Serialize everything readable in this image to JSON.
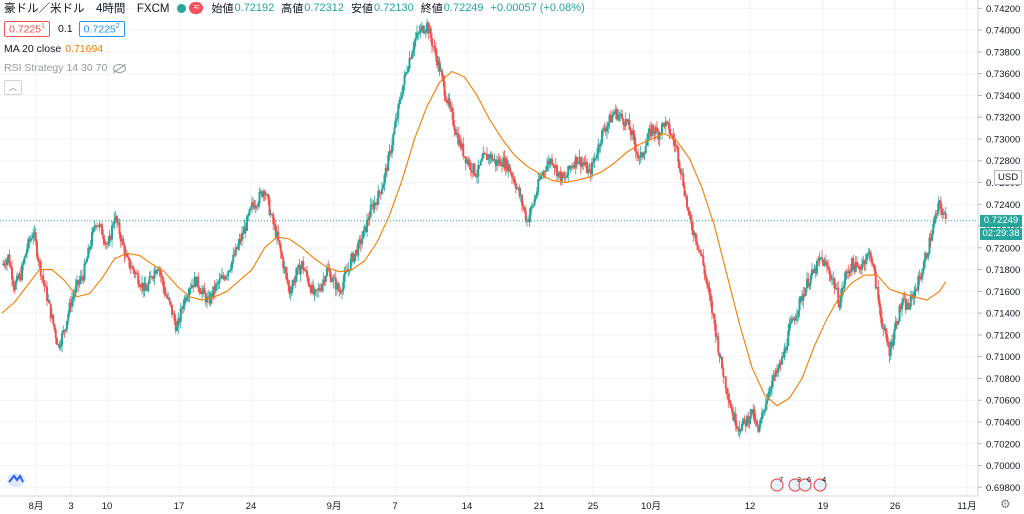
{
  "header": {
    "symbol": "豪ドル／米ドル　4時間　FXCM",
    "ohlc": [
      {
        "label": "始値",
        "value": "0.72192"
      },
      {
        "label": "高値",
        "value": "0.72312"
      },
      {
        "label": "安値",
        "value": "0.72130"
      },
      {
        "label": "終値",
        "value": "0.72249"
      }
    ],
    "change": "+0.00057 (+0.08%)",
    "tilde_icon": "≈",
    "sell_price": "0.7225",
    "sell_price_sup": "1",
    "spread": "0.1",
    "buy_price": "0.7225",
    "buy_price_sup": "2"
  },
  "indicators": {
    "ma_label": "MA 20 close",
    "ma_value": "0.71694",
    "rsi_label": "RSI Strategy 14 30 70",
    "rsi_icon": "eye-hidden-icon"
  },
  "colors": {
    "up": "#26a69a",
    "down": "#ef5350",
    "ma": "#f57c00",
    "grid": "#f0f3fa",
    "axis_text": "#131722"
  },
  "price_axis": {
    "currency": "USD",
    "current_price": "0.72249",
    "countdown": "02:29:38"
  },
  "chart_data": {
    "type": "candlestick",
    "title": "",
    "xlabel": "",
    "ylabel": "",
    "ylim": [
      0.6972,
      0.7424
    ],
    "yticks": [
      "0.74200",
      "0.74000",
      "0.73800",
      "0.73600",
      "0.73400",
      "0.73200",
      "0.73000",
      "0.72800",
      "0.72600",
      "0.72400",
      "0.72200",
      "0.72000",
      "0.71800",
      "0.71600",
      "0.71400",
      "0.71200",
      "0.71000",
      "0.70800",
      "0.70600",
      "0.70400",
      "0.70200",
      "0.70000",
      "0.69800"
    ],
    "xticks": [
      "8月",
      "3",
      "10",
      "17",
      "24",
      "9月",
      "7",
      "14",
      "21",
      "25",
      "10月",
      "12",
      "19",
      "26",
      "11月"
    ],
    "grid": true,
    "close_path": [
      [
        0,
        0.7184
      ],
      [
        5,
        0.7192
      ],
      [
        10,
        0.7165
      ],
      [
        15,
        0.7175
      ],
      [
        20,
        0.72
      ],
      [
        25,
        0.7215
      ],
      [
        30,
        0.7185
      ],
      [
        35,
        0.716
      ],
      [
        40,
        0.7135
      ],
      [
        45,
        0.711
      ],
      [
        50,
        0.7125
      ],
      [
        55,
        0.715
      ],
      [
        60,
        0.7165
      ],
      [
        65,
        0.7175
      ],
      [
        70,
        0.72
      ],
      [
        75,
        0.7225
      ],
      [
        80,
        0.7215
      ],
      [
        85,
        0.72
      ],
      [
        90,
        0.723
      ],
      [
        95,
        0.721
      ],
      [
        100,
        0.7188
      ],
      [
        105,
        0.718
      ],
      [
        110,
        0.717
      ],
      [
        115,
        0.716
      ],
      [
        120,
        0.7175
      ],
      [
        125,
        0.7185
      ],
      [
        130,
        0.716
      ],
      [
        135,
        0.7145
      ],
      [
        140,
        0.7125
      ],
      [
        145,
        0.715
      ],
      [
        150,
        0.7165
      ],
      [
        155,
        0.717
      ],
      [
        160,
        0.716
      ],
      [
        165,
        0.715
      ],
      [
        170,
        0.7162
      ],
      [
        175,
        0.717
      ],
      [
        180,
        0.7178
      ],
      [
        185,
        0.719
      ],
      [
        190,
        0.7205
      ],
      [
        195,
        0.722
      ],
      [
        200,
        0.7238
      ],
      [
        205,
        0.7245
      ],
      [
        210,
        0.7255
      ],
      [
        215,
        0.723
      ],
      [
        220,
        0.721
      ],
      [
        225,
        0.7185
      ],
      [
        230,
        0.716
      ],
      [
        235,
        0.7175
      ],
      [
        240,
        0.7185
      ],
      [
        245,
        0.717
      ],
      [
        250,
        0.7155
      ],
      [
        255,
        0.7165
      ],
      [
        260,
        0.718
      ],
      [
        265,
        0.717
      ],
      [
        270,
        0.716
      ],
      [
        275,
        0.7175
      ],
      [
        280,
        0.719
      ],
      [
        285,
        0.72
      ],
      [
        290,
        0.7215
      ],
      [
        295,
        0.7235
      ],
      [
        300,
        0.7245
      ],
      [
        305,
        0.726
      ],
      [
        310,
        0.7285
      ],
      [
        315,
        0.7315
      ],
      [
        320,
        0.7345
      ],
      [
        325,
        0.737
      ],
      [
        330,
        0.739
      ],
      [
        335,
        0.74
      ],
      [
        340,
        0.7405
      ],
      [
        345,
        0.7385
      ],
      [
        350,
        0.7365
      ],
      [
        355,
        0.734
      ],
      [
        360,
        0.732
      ],
      [
        365,
        0.73
      ],
      [
        370,
        0.7285
      ],
      [
        375,
        0.7275
      ],
      [
        380,
        0.7268
      ],
      [
        385,
        0.7282
      ],
      [
        390,
        0.7285
      ],
      [
        395,
        0.7278
      ],
      [
        400,
        0.728
      ],
      [
        405,
        0.7275
      ],
      [
        410,
        0.7262
      ],
      [
        415,
        0.7245
      ],
      [
        420,
        0.7225
      ],
      [
        425,
        0.724
      ],
      [
        430,
        0.7262
      ],
      [
        435,
        0.7275
      ],
      [
        440,
        0.7282
      ],
      [
        445,
        0.7268
      ],
      [
        450,
        0.7262
      ],
      [
        455,
        0.7275
      ],
      [
        460,
        0.7282
      ],
      [
        465,
        0.7278
      ],
      [
        470,
        0.7268
      ],
      [
        475,
        0.7285
      ],
      [
        480,
        0.7305
      ],
      [
        485,
        0.7315
      ],
      [
        490,
        0.7325
      ],
      [
        495,
        0.732
      ],
      [
        500,
        0.7315
      ],
      [
        505,
        0.73
      ],
      [
        510,
        0.728
      ],
      [
        515,
        0.7295
      ],
      [
        520,
        0.731
      ],
      [
        525,
        0.7305
      ],
      [
        530,
        0.7315
      ],
      [
        535,
        0.7305
      ],
      [
        540,
        0.729
      ],
      [
        545,
        0.726
      ],
      [
        550,
        0.7225
      ],
      [
        555,
        0.721
      ],
      [
        560,
        0.719
      ],
      [
        565,
        0.716
      ],
      [
        570,
        0.713
      ],
      [
        575,
        0.7095
      ],
      [
        580,
        0.707
      ],
      [
        585,
        0.7045
      ],
      [
        590,
        0.7035
      ],
      [
        595,
        0.704
      ],
      [
        600,
        0.705
      ],
      [
        605,
        0.703
      ],
      [
        610,
        0.7055
      ],
      [
        615,
        0.7075
      ],
      [
        620,
        0.7085
      ],
      [
        625,
        0.71
      ],
      [
        630,
        0.7125
      ],
      [
        635,
        0.714
      ],
      [
        640,
        0.7155
      ],
      [
        645,
        0.717
      ],
      [
        650,
        0.7178
      ],
      [
        655,
        0.719
      ],
      [
        660,
        0.7182
      ],
      [
        665,
        0.717
      ],
      [
        670,
        0.715
      ],
      [
        675,
        0.7175
      ],
      [
        680,
        0.7185
      ],
      [
        685,
        0.718
      ],
      [
        690,
        0.719
      ],
      [
        695,
        0.7195
      ],
      [
        700,
        0.716
      ],
      [
        705,
        0.7125
      ],
      [
        710,
        0.7105
      ],
      [
        715,
        0.713
      ],
      [
        720,
        0.715
      ],
      [
        725,
        0.7145
      ],
      [
        730,
        0.716
      ],
      [
        735,
        0.7175
      ],
      [
        740,
        0.7195
      ],
      [
        745,
        0.722
      ],
      [
        750,
        0.724
      ],
      [
        755,
        0.7225
      ]
    ],
    "ma_path": [
      [
        0,
        0.714
      ],
      [
        10,
        0.715
      ],
      [
        20,
        0.7165
      ],
      [
        30,
        0.718
      ],
      [
        40,
        0.718
      ],
      [
        50,
        0.717
      ],
      [
        60,
        0.7155
      ],
      [
        70,
        0.7158
      ],
      [
        80,
        0.7172
      ],
      [
        90,
        0.719
      ],
      [
        100,
        0.7195
      ],
      [
        110,
        0.7193
      ],
      [
        120,
        0.7185
      ],
      [
        130,
        0.7178
      ],
      [
        140,
        0.7165
      ],
      [
        150,
        0.7155
      ],
      [
        160,
        0.7152
      ],
      [
        170,
        0.7155
      ],
      [
        180,
        0.716
      ],
      [
        190,
        0.717
      ],
      [
        200,
        0.718
      ],
      [
        210,
        0.72
      ],
      [
        220,
        0.721
      ],
      [
        230,
        0.7208
      ],
      [
        240,
        0.72
      ],
      [
        250,
        0.719
      ],
      [
        260,
        0.7182
      ],
      [
        270,
        0.7178
      ],
      [
        280,
        0.718
      ],
      [
        290,
        0.7188
      ],
      [
        300,
        0.7205
      ],
      [
        310,
        0.723
      ],
      [
        320,
        0.7262
      ],
      [
        330,
        0.73
      ],
      [
        340,
        0.733
      ],
      [
        350,
        0.7352
      ],
      [
        360,
        0.7362
      ],
      [
        370,
        0.7357
      ],
      [
        380,
        0.734
      ],
      [
        390,
        0.7318
      ],
      [
        400,
        0.73
      ],
      [
        410,
        0.7285
      ],
      [
        420,
        0.7275
      ],
      [
        430,
        0.7268
      ],
      [
        440,
        0.7262
      ],
      [
        450,
        0.726
      ],
      [
        460,
        0.7262
      ],
      [
        470,
        0.7265
      ],
      [
        480,
        0.727
      ],
      [
        490,
        0.7278
      ],
      [
        500,
        0.7288
      ],
      [
        510,
        0.7295
      ],
      [
        520,
        0.73
      ],
      [
        530,
        0.7305
      ],
      [
        540,
        0.7298
      ],
      [
        550,
        0.7282
      ],
      [
        560,
        0.7255
      ],
      [
        570,
        0.722
      ],
      [
        580,
        0.7175
      ],
      [
        590,
        0.713
      ],
      [
        600,
        0.709
      ],
      [
        610,
        0.7065
      ],
      [
        620,
        0.7055
      ],
      [
        630,
        0.7062
      ],
      [
        640,
        0.708
      ],
      [
        650,
        0.711
      ],
      [
        660,
        0.7135
      ],
      [
        670,
        0.7155
      ],
      [
        680,
        0.7168
      ],
      [
        690,
        0.7175
      ],
      [
        700,
        0.7175
      ],
      [
        710,
        0.7162
      ],
      [
        720,
        0.7158
      ],
      [
        730,
        0.7155
      ],
      [
        740,
        0.7152
      ],
      [
        750,
        0.716
      ],
      [
        755,
        0.7169
      ]
    ]
  },
  "events": [
    {
      "label": "7"
    },
    {
      "label": "3"
    },
    {
      "label": "6"
    },
    {
      "label": "4"
    }
  ]
}
